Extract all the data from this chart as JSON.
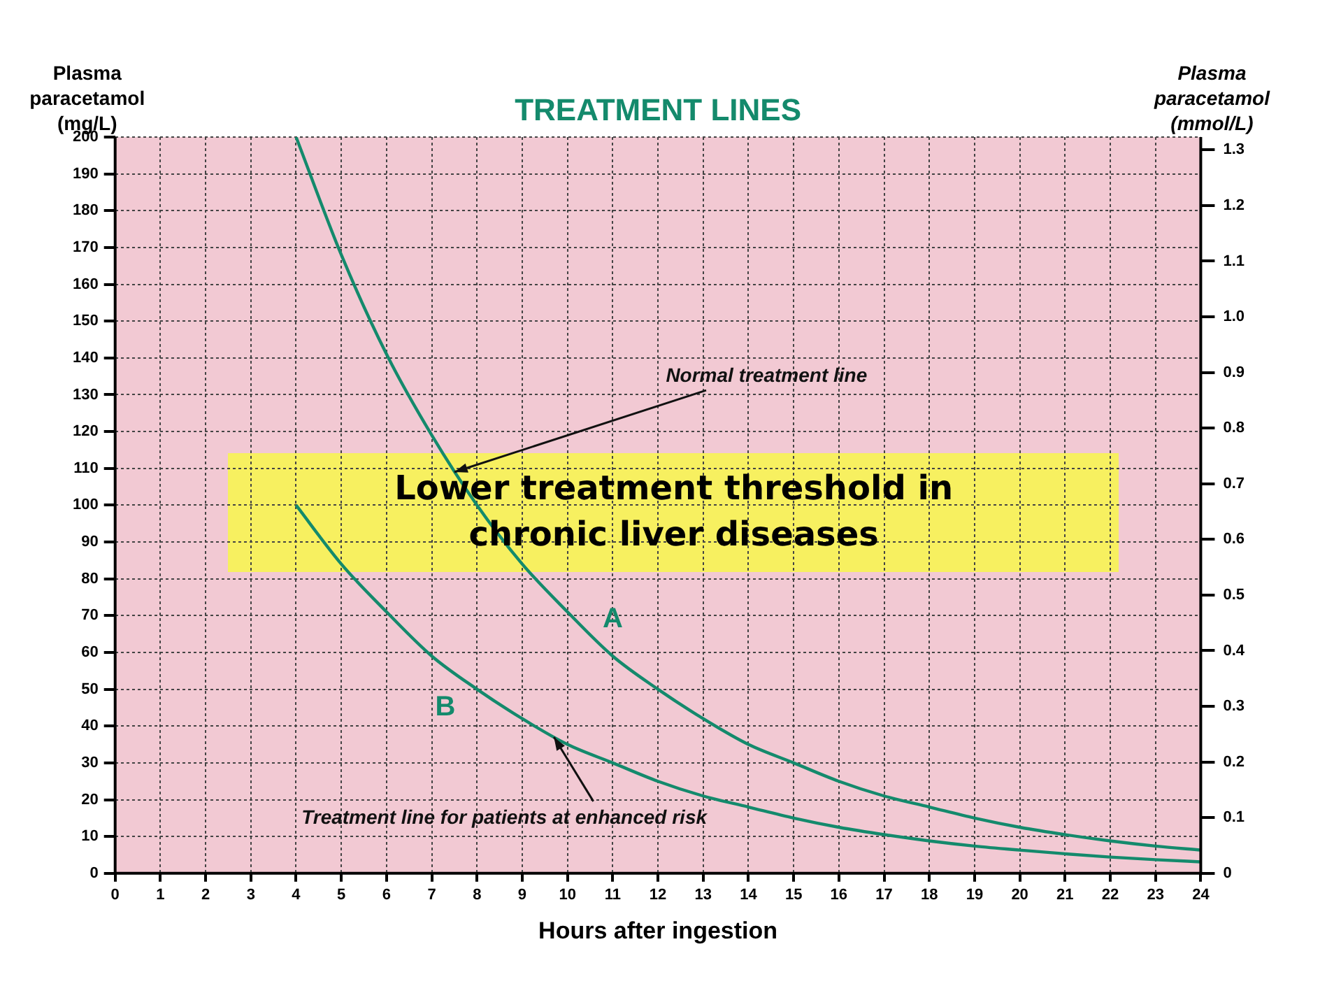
{
  "chart_data": {
    "type": "line",
    "title": "TREATMENT LINES",
    "ylabel": "Plasma paracetamol (mg/L)",
    "y2label": "Plasma paracetamol (mmol/L)",
    "xlabel": "Hours after ingestion",
    "x": [
      4,
      5,
      6,
      7,
      8,
      9,
      10,
      11,
      12,
      13,
      14,
      15,
      16,
      17,
      18,
      19,
      20,
      21,
      22,
      23,
      24
    ],
    "series": [
      {
        "name": "A",
        "color": "#148a6c",
        "values": [
          200,
          168,
          141,
          119,
          100,
          84,
          71,
          59,
          50,
          42,
          35,
          30,
          25,
          21,
          18,
          15,
          12.5,
          10.5,
          8.8,
          7.4,
          6.3
        ]
      },
      {
        "name": "B",
        "color": "#148a6c",
        "values": [
          100,
          84,
          71,
          59,
          50,
          42,
          35,
          30,
          25,
          21,
          18,
          15,
          12.5,
          10.5,
          8.8,
          7.4,
          6.3,
          5.3,
          4.4,
          3.7,
          3.1
        ]
      }
    ],
    "xlim": [
      0,
      24
    ],
    "xticks": [
      0,
      1,
      2,
      3,
      4,
      5,
      6,
      7,
      8,
      9,
      10,
      11,
      12,
      13,
      14,
      15,
      16,
      17,
      18,
      19,
      20,
      21,
      22,
      23,
      24
    ],
    "ylim": [
      0,
      200
    ],
    "yticks": [
      0,
      10,
      20,
      30,
      40,
      50,
      60,
      70,
      80,
      90,
      100,
      110,
      120,
      130,
      140,
      150,
      160,
      170,
      180,
      190,
      200
    ],
    "y2lim": [
      0,
      1.323
    ],
    "y2ticks": [
      0,
      0.1,
      0.2,
      0.3,
      0.4,
      0.5,
      0.6,
      0.7,
      0.8,
      0.9,
      {
        "value": 1,
        "label": "1.0"
      },
      1.1,
      1.2,
      1.3
    ],
    "grid": true,
    "legend": false,
    "marker": "none",
    "line_style": "solid",
    "annotations": [
      "Lower treatment threshold in chronic liver diseases",
      {
        "text": "Normal treatment line",
        "x": 7.5,
        "y": 109
      },
      {
        "text": "Treatment line for patients at enhanced risk",
        "x": 9.7,
        "y": 37
      }
    ]
  }
}
